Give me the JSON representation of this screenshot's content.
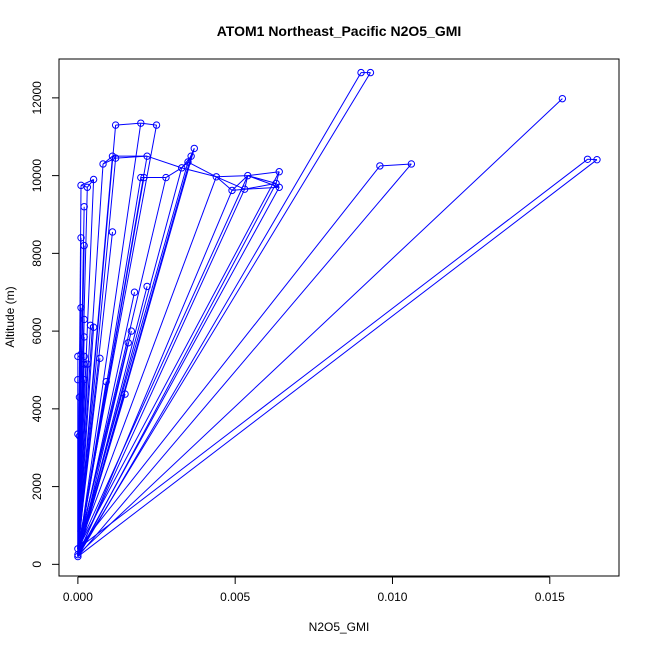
{
  "chart_data": {
    "type": "scatter",
    "title": "ATOM1 Northeast_Pacific N2O5_GMI",
    "xlabel": "N2O5_GMI",
    "ylabel": "Altitude (m)",
    "xlim": [
      -0.0006,
      0.0172
    ],
    "ylim": [
      -300,
      13000
    ],
    "x_ticks": [
      0,
      0.005,
      0.01,
      0.015
    ],
    "x_tick_labels": [
      "0.000",
      "0.005",
      "0.010",
      "0.015"
    ],
    "y_ticks": [
      0,
      2000,
      4000,
      6000,
      8000,
      10000,
      12000
    ],
    "y_tick_labels": [
      "0",
      "2000",
      "4000",
      "6000",
      "8000",
      "10000",
      "12000"
    ],
    "style": {
      "color": "#0000ff",
      "markers": "open-circle",
      "lines": true,
      "grid": false
    },
    "x": [
      0.0,
      0.0,
      0.0,
      0.0001,
      5e-05,
      0.0,
      5e-05,
      0.0,
      0.0002,
      0.0003,
      0.0002,
      0.0007,
      0.0002,
      0.0015,
      0.0016,
      0.0017,
      0.0009,
      0.0004,
      0.0005,
      0.0002,
      0.0001,
      0.0002,
      0.0001,
      0.0,
      0.0022,
      0.0018,
      0.0011,
      0.0001,
      0.0002,
      0.0002,
      0.0003,
      0.0005,
      0.0008,
      0.0001,
      0.0033,
      0.0035,
      0.0037,
      0.0036,
      0.0025,
      0.002,
      0.0012,
      0.0011,
      0.0012,
      0.0022,
      0.0028,
      0.002,
      0.0021,
      0.0044,
      0.0049,
      0.0053,
      0.0054,
      0.0063,
      0.0064,
      0.0064,
      0.009,
      0.0093,
      0.0096,
      0.0106,
      0.0154,
      0.0162,
      0.0165
    ],
    "y": [
      200,
      250,
      400,
      850,
      3300,
      3350,
      4300,
      4750,
      4750,
      5150,
      5150,
      5300,
      5350,
      4380,
      5700,
      6000,
      4700,
      6150,
      6100,
      6300,
      5400,
      5850,
      6600,
      5350,
      7150,
      7000,
      8550,
      8400,
      8200,
      9200,
      9700,
      9900,
      10300,
      9750,
      10200,
      10350,
      10700,
      10500,
      11300,
      11350,
      11300,
      10500,
      10450,
      10500,
      9950,
      9950,
      9950,
      9970,
      9620,
      9650,
      10000,
      9800,
      9700,
      10100,
      12650,
      12650,
      10250,
      10300,
      11980,
      10420,
      10410
    ]
  }
}
